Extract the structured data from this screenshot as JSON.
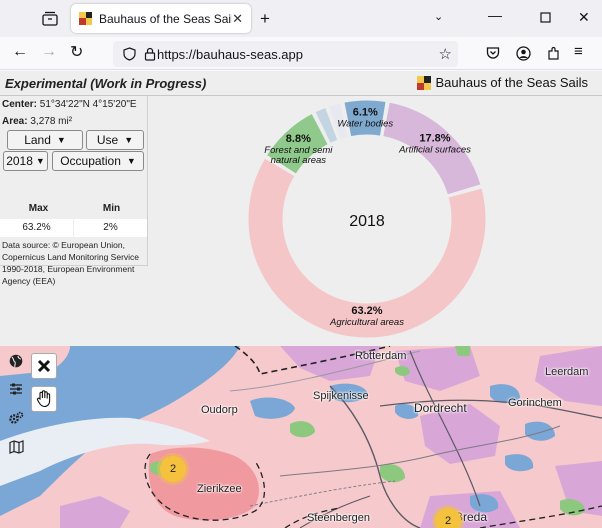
{
  "browser": {
    "tab_title": "Bauhaus of the Seas Sails",
    "url": "https://bauhaus-seas.app"
  },
  "app": {
    "title": "Experimental (Work in Progress)",
    "brand": "Bauhaus of the Seas Sails"
  },
  "panel": {
    "center_label": "Center:",
    "center_value": "51°34'22\"N 4°15'20\"E",
    "area_label": "Area:",
    "area_value": "3,278 mi²",
    "land_select": "Land",
    "use_select": "Use",
    "year_select": "2018",
    "occupation_select": "Occupation",
    "max_label": "Max",
    "min_label": "Min",
    "max_value": "63.2%",
    "min_value": "2%",
    "source": "Data source: © European Union, Copernicus Land Monitoring Service 1990-2018, European Environment Agency (EEA)"
  },
  "chart_data": {
    "type": "pie",
    "center_label": "2018",
    "slices": [
      {
        "label": "Artificial surfaces",
        "value": 17.8,
        "color": "#d7b7da"
      },
      {
        "label": "Agricultural areas",
        "value": 63.2,
        "color": "#f4c6c8"
      },
      {
        "label": "Forest and semi natural areas",
        "value": 8.8,
        "color": "#8fc98b"
      },
      {
        "label": "",
        "value": 2.0,
        "color": "#c3d4e3"
      },
      {
        "label": "",
        "value": 2.1,
        "color": "#e8e8f0"
      },
      {
        "label": "Water bodies",
        "value": 6.1,
        "color": "#7fa9cf"
      }
    ]
  },
  "map": {
    "labels": [
      "Rotterdam",
      "Leerdam",
      "Spijkenisse",
      "Dordrecht",
      "Gorinchem",
      "Oudorp",
      "Zierikzee",
      "Steenbergen",
      "Breda"
    ],
    "clusters": [
      "2",
      "2"
    ],
    "icons": [
      "globe-icon",
      "sliders-icon",
      "gears-icon",
      "map-icon"
    ]
  }
}
